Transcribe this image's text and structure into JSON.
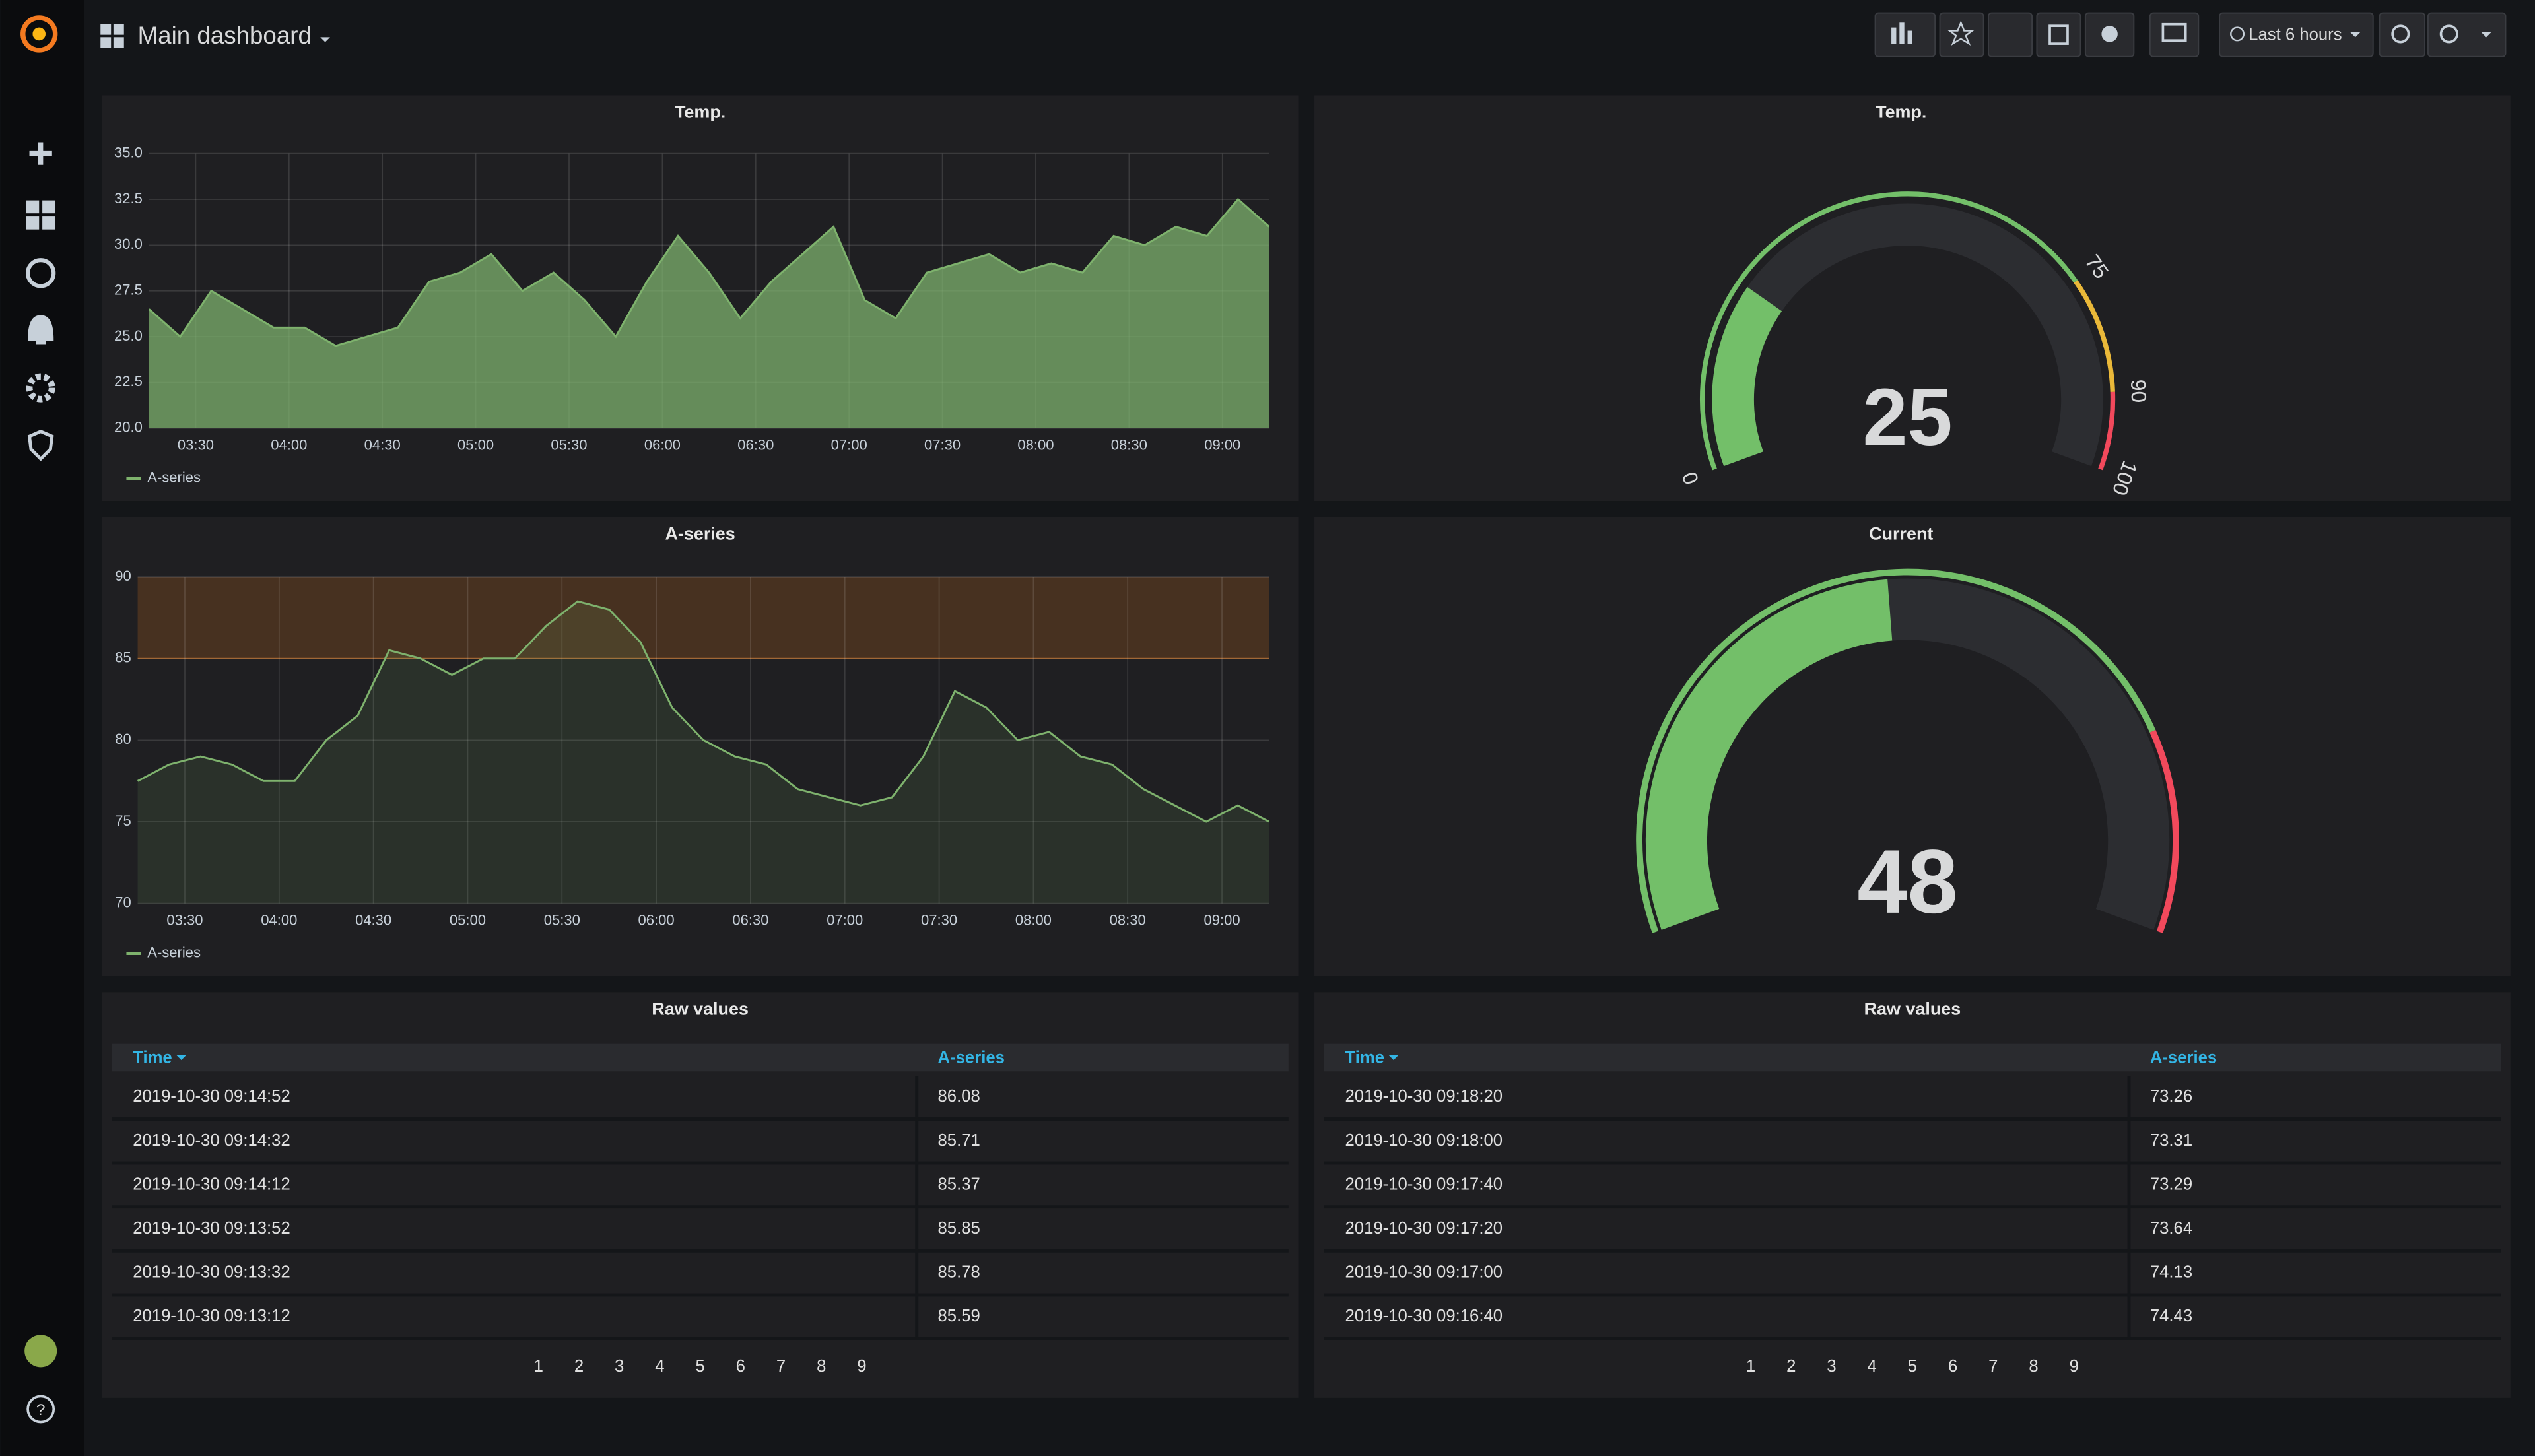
{
  "header": {
    "title": "Main dashboard",
    "time_range": "Last 6 hours"
  },
  "chart_data": [
    {
      "type": "line",
      "title": "Temp.",
      "x": [
        "03:15",
        "03:25",
        "03:35",
        "03:45",
        "03:55",
        "04:05",
        "04:15",
        "04:25",
        "04:35",
        "04:45",
        "04:55",
        "05:05",
        "05:15",
        "05:25",
        "05:35",
        "05:45",
        "05:55",
        "06:05",
        "06:15",
        "06:25",
        "06:35",
        "06:45",
        "06:55",
        "07:05",
        "07:15",
        "07:25",
        "07:35",
        "07:45",
        "07:55",
        "08:05",
        "08:15",
        "08:25",
        "08:35",
        "08:45",
        "08:55",
        "09:05",
        "09:15"
      ],
      "series": [
        {
          "name": "A-series",
          "color": "#7eb26d",
          "values": [
            26.5,
            25,
            27.5,
            26.5,
            25.5,
            25.5,
            24.5,
            25,
            25.5,
            28,
            28.5,
            29.5,
            27.5,
            28.5,
            27,
            25,
            28,
            30.5,
            28.5,
            26,
            28,
            29.5,
            31,
            27,
            26,
            28.5,
            29,
            29.5,
            28.5,
            29,
            28.5,
            30.5,
            30,
            31,
            30.5,
            32.5,
            31
          ]
        }
      ],
      "fill": 0.75,
      "xlim": [
        "03:15",
        "09:15"
      ],
      "xticks": [
        "03:30",
        "04:00",
        "04:30",
        "05:00",
        "05:30",
        "06:00",
        "06:30",
        "07:00",
        "07:30",
        "08:00",
        "08:30",
        "09:00"
      ],
      "ylim": [
        20,
        35
      ],
      "yticks": [
        {
          "value": 20,
          "label": "20.0"
        },
        {
          "value": 22.5,
          "label": "22.5"
        },
        {
          "value": 25,
          "label": "25.0"
        },
        {
          "value": 27.5,
          "label": "27.5"
        },
        {
          "value": 30,
          "label": "30.0"
        },
        {
          "value": 32.5,
          "label": "32.5"
        },
        {
          "value": 35,
          "label": "35.0"
        }
      ],
      "grid": true,
      "legend": "bottom"
    },
    {
      "type": "line",
      "title": "A-series",
      "x": [
        "03:15",
        "03:25",
        "03:35",
        "03:45",
        "03:55",
        "04:05",
        "04:15",
        "04:25",
        "04:35",
        "04:45",
        "04:55",
        "05:05",
        "05:15",
        "05:25",
        "05:35",
        "05:45",
        "05:55",
        "06:05",
        "06:15",
        "06:25",
        "06:35",
        "06:45",
        "06:55",
        "07:05",
        "07:15",
        "07:25",
        "07:35",
        "07:45",
        "07:55",
        "08:05",
        "08:15",
        "08:25",
        "08:35",
        "08:45",
        "08:55",
        "09:05",
        "09:15"
      ],
      "series": [
        {
          "name": "A-series",
          "color": "#7eb26d",
          "values": [
            77.5,
            78.5,
            79,
            78.5,
            77.5,
            77.5,
            80,
            81.5,
            85.5,
            85,
            84,
            85,
            85,
            87,
            88.5,
            88,
            86,
            82,
            80,
            79,
            78.5,
            77,
            76.5,
            76,
            76.5,
            79,
            83,
            82,
            80,
            80.5,
            79,
            78.5,
            77,
            76,
            75,
            76,
            75
          ]
        }
      ],
      "fill": 0.12,
      "threshold": {
        "value": 85,
        "color": "#eb7b18"
      },
      "xlim": [
        "03:15",
        "09:15"
      ],
      "xticks": [
        "03:30",
        "04:00",
        "04:30",
        "05:00",
        "05:30",
        "06:00",
        "06:30",
        "07:00",
        "07:30",
        "08:00",
        "08:30",
        "09:00"
      ],
      "ylim": [
        70,
        90
      ],
      "yticks": [
        70,
        75,
        80,
        85,
        90
      ],
      "grid": true,
      "legend": "bottom"
    },
    {
      "type": "gauge",
      "title": "Temp.",
      "value": 25,
      "color": "#73bf69",
      "lim": [
        0,
        100
      ],
      "ticks": [
        0,
        75,
        90,
        100
      ],
      "thresholds": [
        {
          "from": 0,
          "to": 75,
          "color": "#73bf69"
        },
        {
          "from": 75,
          "to": 90,
          "color": "#eab839"
        },
        {
          "from": 90,
          "to": 100,
          "color": "#f2495c"
        }
      ]
    },
    {
      "type": "gauge",
      "title": "Current",
      "value": 48,
      "color": "#73bf69",
      "lim": [
        0,
        100
      ],
      "thresholds": [
        {
          "from": 0,
          "to": 80,
          "color": "#73bf69"
        },
        {
          "from": 80,
          "to": 100,
          "color": "#f2495c"
        }
      ]
    }
  ],
  "tables": [
    {
      "title": "Raw values",
      "columns": [
        "Time",
        "A-series"
      ],
      "rows": [
        [
          "2019-10-30 09:14:52",
          86.08
        ],
        [
          "2019-10-30 09:14:32",
          85.71
        ],
        [
          "2019-10-30 09:14:12",
          85.37
        ],
        [
          "2019-10-30 09:13:52",
          85.85
        ],
        [
          "2019-10-30 09:13:32",
          85.78
        ],
        [
          "2019-10-30 09:13:12",
          85.59
        ]
      ],
      "pages": [
        1,
        2,
        3,
        4,
        5,
        6,
        7,
        8,
        9
      ]
    },
    {
      "title": "Raw values",
      "columns": [
        "Time",
        "A-series"
      ],
      "rows": [
        [
          "2019-10-30 09:18:20",
          73.26
        ],
        [
          "2019-10-30 09:18:00",
          73.31
        ],
        [
          "2019-10-30 09:17:40",
          73.29
        ],
        [
          "2019-10-30 09:17:20",
          73.64
        ],
        [
          "2019-10-30 09:17:00",
          74.13
        ],
        [
          "2019-10-30 09:16:40",
          74.43
        ]
      ],
      "pages": [
        1,
        2,
        3,
        4,
        5,
        6,
        7,
        8,
        9
      ]
    }
  ]
}
